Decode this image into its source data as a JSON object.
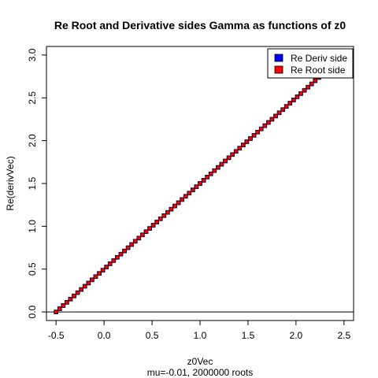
{
  "chart_data": {
    "type": "scatter",
    "title": "Re Root and Derivative sides Gamma as functions of z0",
    "xlabel": "z0Vec",
    "subtitle": "mu=-0.01, 2000000 roots",
    "ylabel": "Re(derivVec)",
    "xlim": [
      -0.6,
      2.6
    ],
    "ylim": [
      -0.1,
      3.1
    ],
    "x_ticks": [
      "-0.5",
      "0.0",
      "0.5",
      "1.0",
      "1.5",
      "2.0",
      "2.5"
    ],
    "y_ticks": [
      "0.0",
      "0.5",
      "1.0",
      "1.5",
      "2.0",
      "2.5",
      "3.0"
    ],
    "hline": 0,
    "legend_position": "top-right",
    "series": [
      {
        "name": "Re Deriv side",
        "color": "#0000ff",
        "marker": "square",
        "x_start": -0.5,
        "x_end": 2.5,
        "x_step": 0.0375,
        "relation": "y = x + 0.5"
      },
      {
        "name": "Re Root side",
        "color": "#ff0000",
        "marker": "circle",
        "x_start": -0.5,
        "x_end": 2.5,
        "x_step": 0.0375,
        "relation": "y = x + 0.5"
      }
    ]
  }
}
